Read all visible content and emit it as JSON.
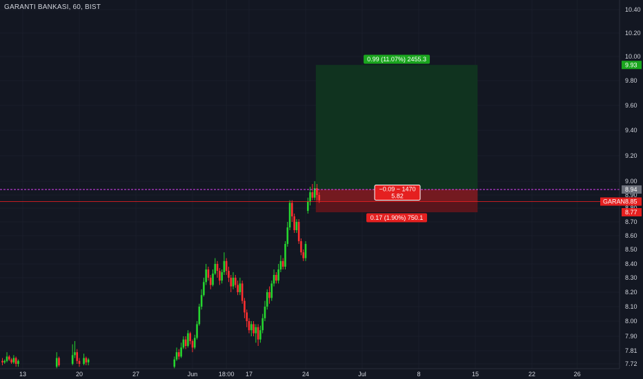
{
  "title": "GARANTI BANKASI, 60, BIST",
  "colors": {
    "background": "#131722",
    "up": "#26d62f",
    "down": "#ff3030",
    "target_zone": "#10331f",
    "stop_zone": "#5a151c",
    "target_badge": "#1aa51e",
    "stop_badge": "#e52020",
    "magenta_line": "#e040fb",
    "red_line": "#ff2020",
    "axis_text": "#d1d4dc"
  },
  "price_axis": {
    "ticks": [
      "10.40",
      "10.20",
      "10.00",
      "9.80",
      "9.60",
      "9.40",
      "9.20",
      "9.00",
      "8.90",
      "8.80",
      "8.70",
      "8.60",
      "8.50",
      "8.40",
      "8.30",
      "8.20",
      "8.10",
      "8.00",
      "7.90",
      "7.81",
      "7.72"
    ],
    "tick_values": [
      10.4,
      10.2,
      10.0,
      9.8,
      9.6,
      9.4,
      9.2,
      9.0,
      8.9,
      8.8,
      8.7,
      8.6,
      8.5,
      8.4,
      8.3,
      8.2,
      8.1,
      8.0,
      7.9,
      7.81,
      7.72
    ]
  },
  "time_axis": {
    "labels": [
      "13",
      "20",
      "27",
      "Jun",
      "18:00",
      "17",
      "24",
      "Jul",
      "8",
      "15",
      "22",
      "26"
    ],
    "label_values": [
      0,
      5,
      10,
      15,
      18,
      20,
      25,
      30,
      35,
      40,
      45,
      49
    ]
  },
  "price_badges": {
    "target": "9.93",
    "entry": "8.94",
    "current_name": "GARAN",
    "current": "8.85",
    "stop": "8.77"
  },
  "position": {
    "target_label": "0.99 (11.07%) 2455.3",
    "stop_label": "0.17 (1.90%) 750.1",
    "pnl_line1": "−0.09 ~ 1470",
    "pnl_line2": "5.82",
    "target_price": 9.93,
    "entry_price": 8.94,
    "stop_price": 8.77,
    "current_price": 8.85,
    "start_x": 25.9,
    "end_x": 40.2
  },
  "candles": [
    [
      -1.8,
      7.74,
      7.73,
      7.76,
      7.71
    ],
    [
      -1.6,
      7.73,
      7.74,
      7.75,
      7.72
    ],
    [
      -1.4,
      7.74,
      7.77,
      7.8,
      7.73
    ],
    [
      -1.2,
      7.77,
      7.75,
      7.78,
      7.74
    ],
    [
      -1.0,
      7.75,
      7.73,
      7.76,
      7.72
    ],
    [
      -0.8,
      7.73,
      7.76,
      7.78,
      7.72
    ],
    [
      -0.6,
      7.76,
      7.72,
      7.77,
      7.7
    ],
    [
      -0.4,
      7.72,
      7.74,
      7.75,
      7.7
    ],
    [
      3.0,
      7.7,
      7.76,
      7.8,
      7.69
    ],
    [
      3.2,
      7.76,
      7.71,
      7.77,
      7.7
    ],
    [
      4.4,
      7.72,
      7.78,
      7.85,
      7.71
    ],
    [
      4.6,
      7.78,
      7.8,
      7.87,
      7.76
    ],
    [
      4.8,
      7.8,
      7.74,
      7.82,
      7.72
    ],
    [
      5.0,
      7.74,
      7.72,
      7.76,
      7.7
    ],
    [
      5.4,
      7.72,
      7.76,
      7.79,
      7.71
    ],
    [
      5.6,
      7.76,
      7.73,
      7.77,
      7.71
    ],
    [
      5.8,
      7.73,
      7.75,
      7.76,
      7.71
    ],
    [
      13.4,
      7.7,
      7.75,
      7.77,
      7.69
    ],
    [
      13.6,
      7.75,
      7.8,
      7.83,
      7.74
    ],
    [
      13.8,
      7.8,
      7.77,
      7.82,
      7.75
    ],
    [
      14.0,
      7.77,
      7.83,
      7.86,
      7.76
    ],
    [
      14.2,
      7.83,
      7.88,
      7.9,
      7.82
    ],
    [
      14.4,
      7.88,
      7.84,
      7.9,
      7.82
    ],
    [
      14.6,
      7.84,
      7.92,
      7.94,
      7.83
    ],
    [
      14.8,
      7.92,
      7.87,
      7.93,
      7.85
    ],
    [
      15.0,
      7.87,
      7.83,
      7.88,
      7.8
    ],
    [
      15.2,
      7.83,
      7.89,
      7.91,
      7.82
    ],
    [
      15.4,
      7.89,
      7.98,
      8.0,
      7.88
    ],
    [
      15.6,
      7.98,
      8.1,
      8.12,
      7.97
    ],
    [
      15.8,
      8.1,
      8.18,
      8.22,
      8.08
    ],
    [
      16.0,
      8.18,
      8.27,
      8.3,
      8.17
    ],
    [
      16.2,
      8.27,
      8.36,
      8.4,
      8.25
    ],
    [
      16.4,
      8.36,
      8.3,
      8.38,
      8.28
    ],
    [
      16.6,
      8.3,
      8.25,
      8.32,
      8.22
    ],
    [
      16.8,
      8.25,
      8.33,
      8.36,
      8.24
    ],
    [
      17.0,
      8.33,
      8.4,
      8.44,
      8.32
    ],
    [
      17.2,
      8.4,
      8.35,
      8.42,
      8.3
    ],
    [
      17.4,
      8.35,
      8.28,
      8.37,
      8.25
    ],
    [
      17.6,
      8.28,
      8.34,
      8.36,
      8.26
    ],
    [
      17.8,
      8.34,
      8.42,
      8.48,
      8.32
    ],
    [
      18.0,
      8.42,
      8.35,
      8.44,
      8.32
    ],
    [
      18.2,
      8.35,
      8.3,
      8.38,
      8.27
    ],
    [
      18.4,
      8.3,
      8.24,
      8.32,
      8.2
    ],
    [
      18.6,
      8.24,
      8.3,
      8.34,
      8.22
    ],
    [
      18.8,
      8.3,
      8.25,
      8.32,
      8.23
    ],
    [
      19.0,
      8.25,
      8.2,
      8.28,
      8.18
    ],
    [
      19.2,
      8.2,
      8.26,
      8.3,
      8.18
    ],
    [
      19.4,
      8.26,
      8.14,
      8.28,
      8.12
    ],
    [
      19.6,
      8.14,
      8.06,
      8.16,
      8.02
    ],
    [
      19.8,
      8.06,
      8.0,
      8.08,
      7.96
    ],
    [
      20.0,
      8.0,
      7.94,
      8.02,
      7.92
    ],
    [
      20.2,
      7.94,
      7.98,
      8.0,
      7.9
    ],
    [
      20.4,
      7.98,
      7.92,
      8.0,
      7.9
    ],
    [
      20.6,
      7.92,
      7.96,
      7.98,
      7.86
    ],
    [
      20.8,
      7.96,
      7.88,
      7.98,
      7.84
    ],
    [
      21.0,
      7.88,
      7.94,
      7.97,
      7.86
    ],
    [
      21.2,
      7.94,
      8.02,
      8.05,
      7.92
    ],
    [
      21.4,
      8.02,
      8.1,
      8.14,
      8.0
    ],
    [
      21.6,
      8.1,
      8.2,
      8.22,
      8.08
    ],
    [
      21.8,
      8.2,
      8.16,
      8.24,
      8.12
    ],
    [
      22.0,
      8.16,
      8.26,
      8.28,
      8.14
    ],
    [
      22.2,
      8.26,
      8.32,
      8.36,
      8.24
    ],
    [
      22.4,
      8.32,
      8.28,
      8.34,
      8.26
    ],
    [
      22.6,
      8.28,
      8.36,
      8.4,
      8.26
    ],
    [
      22.8,
      8.36,
      8.42,
      8.46,
      8.34
    ],
    [
      23.0,
      8.42,
      8.38,
      8.44,
      8.36
    ],
    [
      23.2,
      8.38,
      8.54,
      8.56,
      8.36
    ],
    [
      23.4,
      8.54,
      8.66,
      8.7,
      8.52
    ],
    [
      23.6,
      8.66,
      8.84,
      8.86,
      8.64
    ],
    [
      23.8,
      8.84,
      8.74,
      8.86,
      8.7
    ],
    [
      24.0,
      8.74,
      8.64,
      8.76,
      8.62
    ],
    [
      24.2,
      8.64,
      8.7,
      8.72,
      8.62
    ],
    [
      24.4,
      8.7,
      8.56,
      8.72,
      8.54
    ],
    [
      24.6,
      8.56,
      8.48,
      8.58,
      8.46
    ],
    [
      24.8,
      8.48,
      8.44,
      8.5,
      8.42
    ],
    [
      25.0,
      8.44,
      8.54,
      8.56,
      8.42
    ],
    [
      25.2,
      8.78,
      8.85,
      8.88,
      8.76
    ],
    [
      25.4,
      8.85,
      8.92,
      8.96,
      8.82
    ],
    [
      25.6,
      8.92,
      8.88,
      8.98,
      8.86
    ],
    [
      25.8,
      8.88,
      8.95,
      9.0,
      8.86
    ],
    [
      26.0,
      8.95,
      8.9,
      8.98,
      8.86
    ],
    [
      26.2,
      8.9,
      8.86,
      8.92,
      8.84
    ]
  ]
}
